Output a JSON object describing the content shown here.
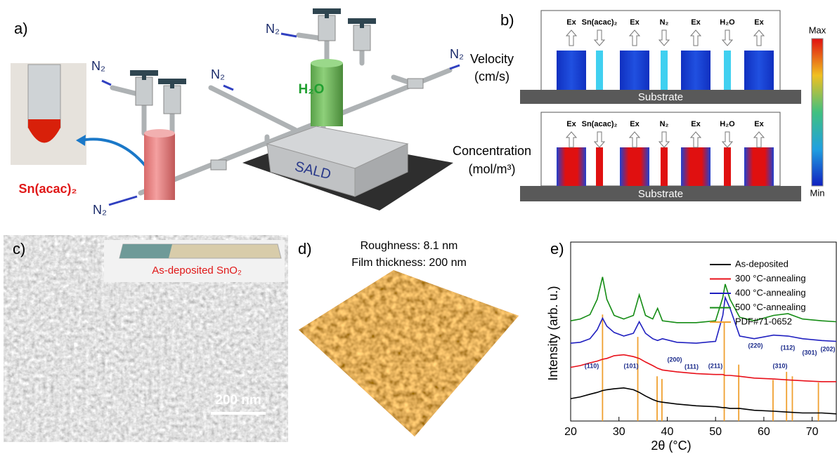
{
  "panels": {
    "a": {
      "label": "a)",
      "n2_labels": [
        "N₂",
        "N₂",
        "N₂",
        "N₂",
        "N₂"
      ],
      "h2o": "H₂O",
      "sald": "SALD",
      "precursor": "Sn(acac)₂"
    },
    "b": {
      "label": "b)",
      "velocity": [
        "Velocity",
        "(cm/s)"
      ],
      "concentration": [
        "Concentration",
        "(mol/m³)"
      ],
      "gas_labels": [
        "Ex",
        "Sn(acac)₂",
        "Ex",
        "N₂",
        "Ex",
        "H₂O",
        "Ex"
      ],
      "substrate": "Substrate",
      "colorbar": {
        "max": "Max",
        "min": "Min"
      }
    },
    "c": {
      "label": "c)",
      "inset": "As-deposited SnO₂",
      "scale_bar": "200 nm"
    },
    "d": {
      "label": "d)",
      "roughness": "Roughness: 8.1 nm",
      "thickness": "Film thickness: 200 nm"
    }
  },
  "chart_data": {
    "type": "line",
    "panel_label": "e)",
    "x_label": "2θ (°C)",
    "y_label": "Intensity (arb. u.)",
    "x": [
      20,
      22,
      24,
      25.5,
      26.6,
      27.5,
      29,
      31,
      33,
      34.2,
      35.5,
      37,
      38,
      39,
      42,
      46,
      50,
      51.5,
      52,
      53,
      55,
      58,
      62,
      65,
      68,
      72,
      75
    ],
    "series": [
      {
        "name": "As-deposited",
        "color": "#000000",
        "values": [
          1.25,
          1.35,
          1.5,
          1.6,
          1.7,
          1.75,
          1.8,
          1.85,
          1.75,
          1.6,
          1.4,
          1.2,
          1.1,
          1.05,
          0.95,
          0.85,
          0.8,
          0.75,
          0.75,
          0.7,
          0.7,
          0.6,
          0.55,
          0.5,
          0.45,
          0.45,
          0.4
        ]
      },
      {
        "name": "300 °C-annealing",
        "color": "#e8101a",
        "values": [
          3.0,
          3.1,
          3.25,
          3.35,
          3.45,
          3.5,
          3.65,
          3.7,
          3.6,
          3.5,
          3.3,
          3.1,
          2.95,
          2.85,
          2.75,
          2.65,
          2.6,
          2.6,
          2.55,
          2.55,
          2.5,
          2.4,
          2.35,
          2.3,
          2.25,
          2.2,
          2.2
        ]
      },
      {
        "name": "400 °C-annealing",
        "color": "#2020c0",
        "values": [
          4.35,
          4.4,
          4.6,
          5.1,
          5.75,
          5.3,
          4.95,
          4.75,
          4.9,
          5.55,
          4.9,
          4.6,
          4.5,
          4.6,
          4.4,
          4.35,
          4.45,
          5.9,
          6.9,
          6.3,
          4.75,
          4.6,
          4.8,
          4.75,
          4.6,
          4.5,
          4.45
        ]
      },
      {
        "name": "500 °C-annealing",
        "color": "#148c14",
        "values": [
          5.6,
          5.7,
          5.95,
          6.8,
          8.05,
          6.8,
          5.9,
          5.7,
          5.9,
          7.05,
          5.9,
          5.7,
          6.3,
          5.6,
          5.5,
          5.5,
          5.6,
          6.9,
          7.65,
          6.8,
          5.8,
          5.6,
          5.9,
          6.0,
          5.7,
          5.6,
          5.55
        ]
      }
    ],
    "reference": {
      "name": "PDF#71-0652",
      "color": "#f0a030",
      "x": [
        26.6,
        33.9,
        37.9,
        38.9,
        51.8,
        54.8,
        61.9,
        64.7,
        65.9,
        71.3
      ],
      "values": [
        5.95,
        4.7,
        2.5,
        2.35,
        5.5,
        3.15,
        2.3,
        2.75,
        2.5,
        2.15
      ],
      "labels": [
        "(110)",
        "(101)",
        "(200)",
        "(111)",
        "(211)",
        "(220)",
        "(310)",
        "(112)",
        "(301)",
        "(202)"
      ]
    },
    "xlim": [
      20,
      75
    ],
    "ylim": [
      0,
      10
    ],
    "xticks": [
      20,
      30,
      40,
      50,
      60,
      70
    ],
    "legend": "upper right"
  }
}
